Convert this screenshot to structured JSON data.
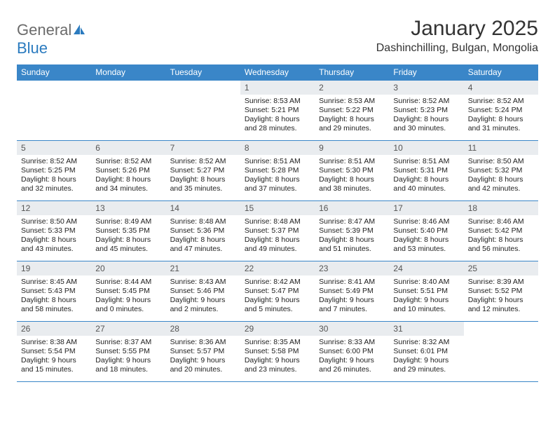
{
  "logo": {
    "text1": "General",
    "text2": "Blue"
  },
  "title": "January 2025",
  "location": "Dashinchilling, Bulgan, Mongolia",
  "colors": {
    "header_bg": "#3a86c8",
    "header_text": "#ffffff",
    "daynum_bg": "#e9ecef",
    "border": "#3a86c8",
    "logo_gray": "#6b6b6b",
    "logo_blue": "#2b7bbf"
  },
  "weekdays": [
    "Sunday",
    "Monday",
    "Tuesday",
    "Wednesday",
    "Thursday",
    "Friday",
    "Saturday"
  ],
  "weeks": [
    [
      null,
      null,
      null,
      {
        "n": "1",
        "sr": "Sunrise: 8:53 AM",
        "ss": "Sunset: 5:21 PM",
        "d1": "Daylight: 8 hours",
        "d2": "and 28 minutes."
      },
      {
        "n": "2",
        "sr": "Sunrise: 8:53 AM",
        "ss": "Sunset: 5:22 PM",
        "d1": "Daylight: 8 hours",
        "d2": "and 29 minutes."
      },
      {
        "n": "3",
        "sr": "Sunrise: 8:52 AM",
        "ss": "Sunset: 5:23 PM",
        "d1": "Daylight: 8 hours",
        "d2": "and 30 minutes."
      },
      {
        "n": "4",
        "sr": "Sunrise: 8:52 AM",
        "ss": "Sunset: 5:24 PM",
        "d1": "Daylight: 8 hours",
        "d2": "and 31 minutes."
      }
    ],
    [
      {
        "n": "5",
        "sr": "Sunrise: 8:52 AM",
        "ss": "Sunset: 5:25 PM",
        "d1": "Daylight: 8 hours",
        "d2": "and 32 minutes."
      },
      {
        "n": "6",
        "sr": "Sunrise: 8:52 AM",
        "ss": "Sunset: 5:26 PM",
        "d1": "Daylight: 8 hours",
        "d2": "and 34 minutes."
      },
      {
        "n": "7",
        "sr": "Sunrise: 8:52 AM",
        "ss": "Sunset: 5:27 PM",
        "d1": "Daylight: 8 hours",
        "d2": "and 35 minutes."
      },
      {
        "n": "8",
        "sr": "Sunrise: 8:51 AM",
        "ss": "Sunset: 5:28 PM",
        "d1": "Daylight: 8 hours",
        "d2": "and 37 minutes."
      },
      {
        "n": "9",
        "sr": "Sunrise: 8:51 AM",
        "ss": "Sunset: 5:30 PM",
        "d1": "Daylight: 8 hours",
        "d2": "and 38 minutes."
      },
      {
        "n": "10",
        "sr": "Sunrise: 8:51 AM",
        "ss": "Sunset: 5:31 PM",
        "d1": "Daylight: 8 hours",
        "d2": "and 40 minutes."
      },
      {
        "n": "11",
        "sr": "Sunrise: 8:50 AM",
        "ss": "Sunset: 5:32 PM",
        "d1": "Daylight: 8 hours",
        "d2": "and 42 minutes."
      }
    ],
    [
      {
        "n": "12",
        "sr": "Sunrise: 8:50 AM",
        "ss": "Sunset: 5:33 PM",
        "d1": "Daylight: 8 hours",
        "d2": "and 43 minutes."
      },
      {
        "n": "13",
        "sr": "Sunrise: 8:49 AM",
        "ss": "Sunset: 5:35 PM",
        "d1": "Daylight: 8 hours",
        "d2": "and 45 minutes."
      },
      {
        "n": "14",
        "sr": "Sunrise: 8:48 AM",
        "ss": "Sunset: 5:36 PM",
        "d1": "Daylight: 8 hours",
        "d2": "and 47 minutes."
      },
      {
        "n": "15",
        "sr": "Sunrise: 8:48 AM",
        "ss": "Sunset: 5:37 PM",
        "d1": "Daylight: 8 hours",
        "d2": "and 49 minutes."
      },
      {
        "n": "16",
        "sr": "Sunrise: 8:47 AM",
        "ss": "Sunset: 5:39 PM",
        "d1": "Daylight: 8 hours",
        "d2": "and 51 minutes."
      },
      {
        "n": "17",
        "sr": "Sunrise: 8:46 AM",
        "ss": "Sunset: 5:40 PM",
        "d1": "Daylight: 8 hours",
        "d2": "and 53 minutes."
      },
      {
        "n": "18",
        "sr": "Sunrise: 8:46 AM",
        "ss": "Sunset: 5:42 PM",
        "d1": "Daylight: 8 hours",
        "d2": "and 56 minutes."
      }
    ],
    [
      {
        "n": "19",
        "sr": "Sunrise: 8:45 AM",
        "ss": "Sunset: 5:43 PM",
        "d1": "Daylight: 8 hours",
        "d2": "and 58 minutes."
      },
      {
        "n": "20",
        "sr": "Sunrise: 8:44 AM",
        "ss": "Sunset: 5:45 PM",
        "d1": "Daylight: 9 hours",
        "d2": "and 0 minutes."
      },
      {
        "n": "21",
        "sr": "Sunrise: 8:43 AM",
        "ss": "Sunset: 5:46 PM",
        "d1": "Daylight: 9 hours",
        "d2": "and 2 minutes."
      },
      {
        "n": "22",
        "sr": "Sunrise: 8:42 AM",
        "ss": "Sunset: 5:47 PM",
        "d1": "Daylight: 9 hours",
        "d2": "and 5 minutes."
      },
      {
        "n": "23",
        "sr": "Sunrise: 8:41 AM",
        "ss": "Sunset: 5:49 PM",
        "d1": "Daylight: 9 hours",
        "d2": "and 7 minutes."
      },
      {
        "n": "24",
        "sr": "Sunrise: 8:40 AM",
        "ss": "Sunset: 5:51 PM",
        "d1": "Daylight: 9 hours",
        "d2": "and 10 minutes."
      },
      {
        "n": "25",
        "sr": "Sunrise: 8:39 AM",
        "ss": "Sunset: 5:52 PM",
        "d1": "Daylight: 9 hours",
        "d2": "and 12 minutes."
      }
    ],
    [
      {
        "n": "26",
        "sr": "Sunrise: 8:38 AM",
        "ss": "Sunset: 5:54 PM",
        "d1": "Daylight: 9 hours",
        "d2": "and 15 minutes."
      },
      {
        "n": "27",
        "sr": "Sunrise: 8:37 AM",
        "ss": "Sunset: 5:55 PM",
        "d1": "Daylight: 9 hours",
        "d2": "and 18 minutes."
      },
      {
        "n": "28",
        "sr": "Sunrise: 8:36 AM",
        "ss": "Sunset: 5:57 PM",
        "d1": "Daylight: 9 hours",
        "d2": "and 20 minutes."
      },
      {
        "n": "29",
        "sr": "Sunrise: 8:35 AM",
        "ss": "Sunset: 5:58 PM",
        "d1": "Daylight: 9 hours",
        "d2": "and 23 minutes."
      },
      {
        "n": "30",
        "sr": "Sunrise: 8:33 AM",
        "ss": "Sunset: 6:00 PM",
        "d1": "Daylight: 9 hours",
        "d2": "and 26 minutes."
      },
      {
        "n": "31",
        "sr": "Sunrise: 8:32 AM",
        "ss": "Sunset: 6:01 PM",
        "d1": "Daylight: 9 hours",
        "d2": "and 29 minutes."
      },
      null
    ]
  ]
}
